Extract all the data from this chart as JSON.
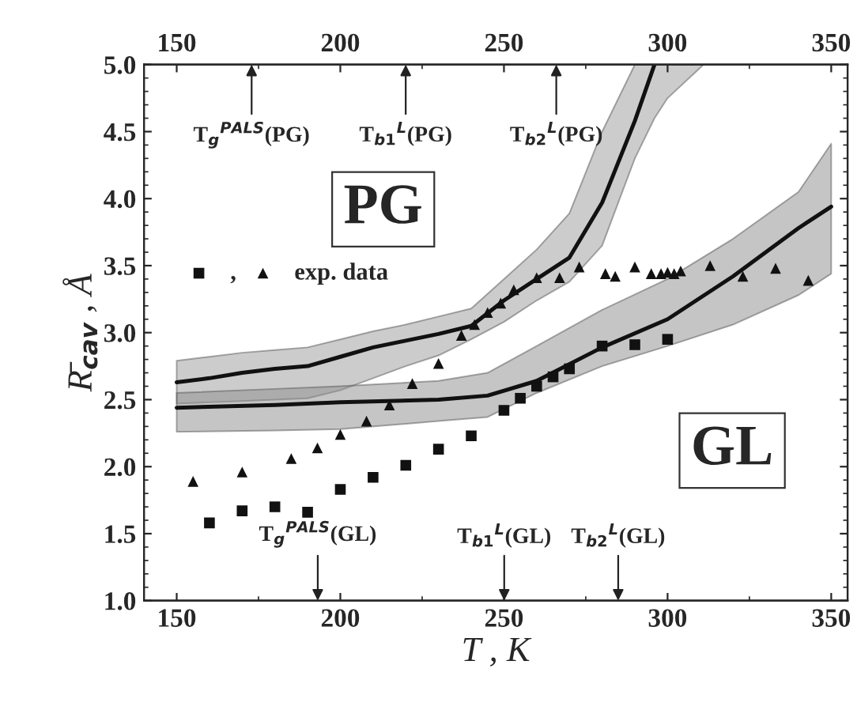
{
  "chart_data": {
    "type": "scatter",
    "xlabel": "T , K",
    "ylabel": "R̄$_{cav}$ , Å",
    "xlim": [
      140,
      355
    ],
    "xticks": [
      150,
      200,
      250,
      300,
      350
    ],
    "x2lim": [
      140,
      355
    ],
    "x2ticks": [
      150,
      200,
      250,
      300,
      350
    ],
    "ylim": [
      1.0,
      5.0
    ],
    "yticks": [
      {
        "value": 1.0,
        "label": "1.0"
      },
      {
        "value": 1.5,
        "label": "1.5"
      },
      {
        "value": 2.0,
        "label": "2.0"
      },
      {
        "value": 2.5,
        "label": "2.5"
      },
      {
        "value": 3.0,
        "label": "3.0"
      },
      {
        "value": 3.5,
        "label": "3.5"
      },
      {
        "value": 4.0,
        "label": "4.0"
      },
      {
        "value": 4.5,
        "label": "4.5"
      },
      {
        "value": 5.0,
        "label": "5.0"
      }
    ],
    "grid": false,
    "legend": "left",
    "series": [
      {
        "name": ",",
        "marker": "square",
        "color": "#111111",
        "x": [
          160,
          170,
          180,
          190,
          200,
          210,
          220,
          230,
          240,
          250,
          255,
          260,
          265,
          270,
          280,
          290,
          300
        ],
        "values": [
          1.58,
          1.67,
          1.7,
          1.66,
          1.83,
          1.92,
          2.01,
          2.13,
          2.23,
          2.42,
          2.51,
          2.6,
          2.67,
          2.73,
          2.9,
          2.91,
          2.95
        ]
      },
      {
        "name": "exp. data",
        "marker": "triangle",
        "color": "#111111",
        "x": [
          155,
          170,
          185,
          193,
          200,
          208,
          215,
          222,
          230,
          237,
          241,
          245,
          249,
          253,
          260,
          267,
          273,
          281,
          284,
          290,
          295,
          298,
          300,
          302,
          304,
          313,
          323,
          333,
          343
        ],
        "values": [
          1.89,
          1.96,
          2.06,
          2.14,
          2.24,
          2.34,
          2.46,
          2.62,
          2.77,
          2.98,
          3.06,
          3.15,
          3.22,
          3.32,
          3.41,
          3.41,
          3.49,
          3.44,
          3.42,
          3.49,
          3.44,
          3.44,
          3.45,
          3.44,
          3.46,
          3.5,
          3.42,
          3.48,
          3.39
        ]
      },
      {
        "type": "line",
        "color": "#111111",
        "line_style": "solid",
        "marker": "none",
        "x": [
          150,
          160,
          170,
          180,
          190,
          200,
          210,
          220,
          230,
          240,
          250,
          260,
          270,
          280,
          290,
          296,
          300,
          311
        ],
        "values": [
          2.63,
          2.66,
          2.7,
          2.73,
          2.75,
          2.82,
          2.89,
          2.94,
          2.99,
          3.05,
          3.24,
          3.4,
          3.56,
          3.97,
          4.58,
          5.0,
          null,
          null
        ],
        "lower": [
          2.47,
          2.48,
          2.49,
          2.5,
          2.51,
          2.57,
          2.66,
          2.75,
          2.83,
          2.95,
          3.08,
          3.24,
          3.38,
          3.65,
          4.3,
          4.6,
          4.75,
          5.0
        ],
        "upper": [
          2.79,
          2.82,
          2.85,
          2.87,
          2.89,
          2.95,
          3.01,
          3.06,
          3.12,
          3.18,
          3.4,
          3.62,
          3.89,
          4.5,
          5.0,
          5.0,
          5.0,
          5.0
        ]
      },
      {
        "type": "line",
        "color": "#111111",
        "line_style": "solid",
        "marker": "none",
        "x": [
          150,
          180,
          200,
          230,
          245,
          260,
          280,
          300,
          320,
          340,
          350
        ],
        "values": [
          2.44,
          2.46,
          2.48,
          2.5,
          2.53,
          2.64,
          2.89,
          3.1,
          3.42,
          3.78,
          3.94
        ],
        "lower": [
          2.26,
          2.27,
          2.28,
          2.34,
          2.37,
          2.55,
          2.75,
          2.9,
          3.06,
          3.28,
          3.44
        ],
        "upper": [
          2.55,
          2.58,
          2.6,
          2.64,
          2.7,
          2.9,
          3.17,
          3.4,
          3.7,
          4.05,
          4.41
        ]
      }
    ],
    "annotations": [
      "T$_{g}$$^{PALS}$(PG)",
      "T$_{b1}$$^{L}$(PG)",
      "T$_{b2}$$^{L}$(PG)",
      "T$_{g}$$^{PALS}$(GL)",
      "T$_{b1}$$^{L}$(GL)",
      "T$_{b2}$$^{L}$(GL)",
      "PG",
      "GL"
    ]
  }
}
